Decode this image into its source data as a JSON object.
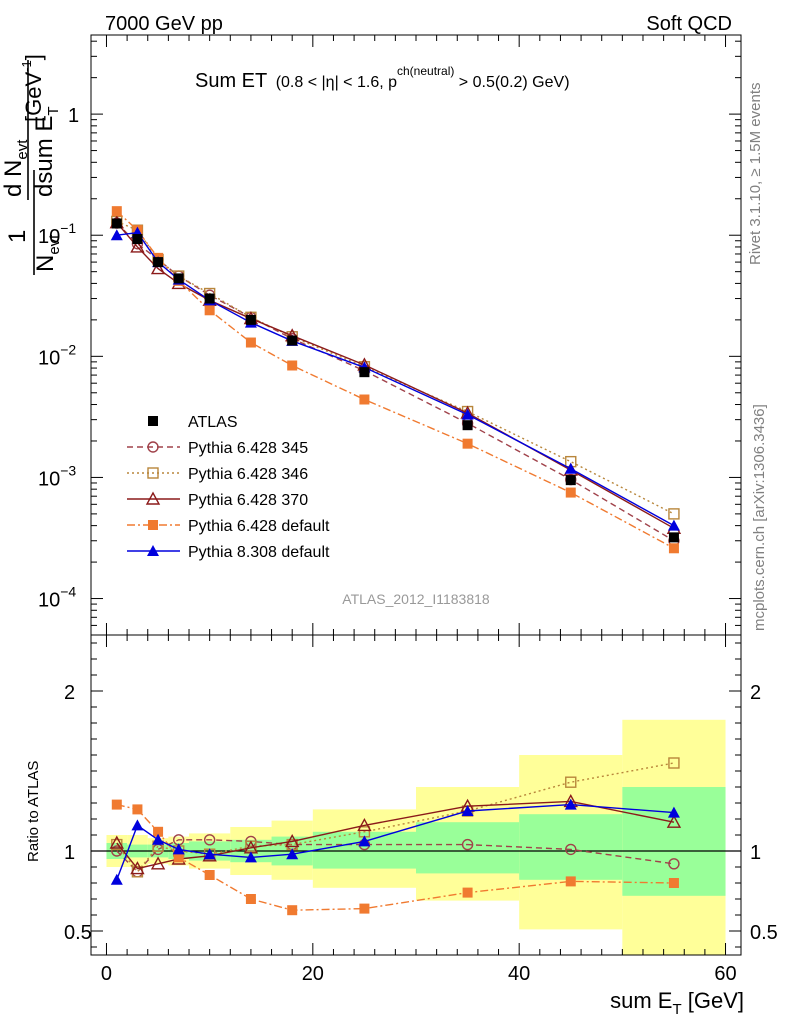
{
  "header": {
    "left": "7000 GeV pp",
    "right": "Soft QCD"
  },
  "title": {
    "main": "Sum ET",
    "cond_a": "(0.8 < |",
    "eta": "η",
    "cond_b": "| < 1.6, p",
    "sup": "ch(neutral)",
    "cond_c": " > 0.5(0.2) GeV)"
  },
  "ylabel": {
    "one": "1",
    "n": "N",
    "evt_sub": "evt",
    "d": "d N",
    "evt_sub2": "evt",
    "dsum": "dsum E",
    "t_sub": "T",
    "unit": "[GeV",
    "unit_sup": "-1",
    "unit_close": "]"
  },
  "side": {
    "rivet": "Rivet 3.1.10, ≥ 1.5M events",
    "mcplots": "mcplots.cern.ch [arXiv:1306.3436]"
  },
  "analysis_id": "ATLAS_2012_I1183818",
  "ratio_ylabel": "Ratio to ATLAS",
  "xlabel": {
    "text": "sum E",
    "sub": "T",
    "unit": " [GeV]"
  },
  "chart_data": {
    "type": "line",
    "x_unit": "GeV",
    "xlim": [
      -1.5,
      61.5
    ],
    "xticks": [
      0,
      20,
      40,
      60
    ],
    "main_ylim": [
      5e-05,
      4.5
    ],
    "main_log": true,
    "main_ytick_labels": [
      {
        "v": 1,
        "base": "1",
        "exp": ""
      },
      {
        "v": 0.1,
        "base": "10",
        "exp": "−1"
      },
      {
        "v": 0.01,
        "base": "10",
        "exp": "−2"
      },
      {
        "v": 0.001,
        "base": "10",
        "exp": "−3"
      },
      {
        "v": 0.0001,
        "base": "10",
        "exp": "−4"
      }
    ],
    "ratio_ylim": [
      0.35,
      2.35
    ],
    "ratio_yticks": [
      0.5,
      1,
      2
    ],
    "ratio_ytick_labels": [
      "0.5",
      "1",
      "2"
    ],
    "x": [
      1,
      3,
      5,
      7,
      10,
      14,
      18,
      25,
      35,
      45,
      55
    ],
    "bins": [
      [
        0,
        2
      ],
      [
        2,
        4
      ],
      [
        4,
        6
      ],
      [
        6,
        8
      ],
      [
        8,
        12
      ],
      [
        12,
        16
      ],
      [
        16,
        20
      ],
      [
        20,
        30
      ],
      [
        30,
        40
      ],
      [
        40,
        50
      ],
      [
        50,
        60
      ]
    ],
    "band_inner": [
      [
        0.95,
        1.05
      ],
      [
        0.96,
        1.04
      ],
      [
        0.96,
        1.04
      ],
      [
        0.95,
        1.05
      ],
      [
        0.94,
        1.06
      ],
      [
        0.93,
        1.07
      ],
      [
        0.91,
        1.09
      ],
      [
        0.89,
        1.12
      ],
      [
        0.86,
        1.18
      ],
      [
        0.82,
        1.23
      ],
      [
        0.72,
        1.4
      ]
    ],
    "band_outer": [
      [
        0.9,
        1.1
      ],
      [
        0.9,
        1.1
      ],
      [
        0.92,
        1.08
      ],
      [
        0.91,
        1.09
      ],
      [
        0.89,
        1.11
      ],
      [
        0.85,
        1.15
      ],
      [
        0.82,
        1.19
      ],
      [
        0.77,
        1.26
      ],
      [
        0.69,
        1.4
      ],
      [
        0.51,
        1.6
      ],
      [
        0.35,
        1.82
      ]
    ],
    "series": [
      {
        "name": "ATLAS",
        "style": "data",
        "color": "#000000",
        "marker": "square-filled",
        "dash": "",
        "values": [
          0.125,
          0.093,
          0.06,
          0.044,
          0.03,
          0.02,
          0.0135,
          0.0074,
          0.0027,
          0.00095,
          0.00032
        ],
        "ratio": [
          1,
          1,
          1,
          1,
          1,
          1,
          1,
          1,
          1,
          1,
          1
        ]
      },
      {
        "name": "Pythia 6.428 345",
        "color": "#a0424a",
        "marker": "circle-open",
        "dash": "6,4",
        "values": [
          0.126,
          0.085,
          0.063,
          0.046,
          0.032,
          0.021,
          0.014,
          0.0076,
          0.0028,
          0.00096,
          0.0003
        ],
        "ratio": [
          1.0,
          0.87,
          1.01,
          1.07,
          1.07,
          1.06,
          1.04,
          1.04,
          1.04,
          1.01,
          0.92
        ]
      },
      {
        "name": "Pythia 6.428 346",
        "color": "#b8863b",
        "marker": "square-open",
        "dash": "2,3",
        "values": [
          0.13,
          0.11,
          0.063,
          0.046,
          0.033,
          0.021,
          0.0145,
          0.0082,
          0.0035,
          0.00135,
          0.0005
        ],
        "ratio": [
          1.04,
          0.87,
          1.03,
          1.0,
          0.98,
          1.03,
          1.04,
          1.12,
          1.25,
          1.43,
          1.55
        ]
      },
      {
        "name": "Pythia 6.428 370",
        "color": "#8b1a1a",
        "marker": "triangle-open",
        "dash": "",
        "values": [
          0.127,
          0.08,
          0.053,
          0.04,
          0.029,
          0.0205,
          0.0148,
          0.0085,
          0.0034,
          0.00115,
          0.00038
        ],
        "ratio": [
          1.05,
          0.89,
          0.92,
          0.95,
          0.97,
          1.02,
          1.06,
          1.16,
          1.28,
          1.31,
          1.18
        ]
      },
      {
        "name": "Pythia 6.428 default",
        "color": "#f07a30",
        "marker": "square-filled",
        "dash": "8,3,2,3",
        "values": [
          0.158,
          0.11,
          0.065,
          0.042,
          0.024,
          0.013,
          0.0084,
          0.0044,
          0.0019,
          0.00075,
          0.00026
        ],
        "ratio": [
          1.29,
          1.26,
          1.12,
          0.96,
          0.85,
          0.7,
          0.63,
          0.64,
          0.74,
          0.81,
          0.8
        ]
      },
      {
        "name": "Pythia 8.308 default",
        "color": "#0000dd",
        "marker": "triangle-filled",
        "dash": "",
        "values": [
          0.1,
          0.105,
          0.06,
          0.043,
          0.029,
          0.019,
          0.0134,
          0.0081,
          0.0033,
          0.00118,
          0.0004
        ],
        "ratio": [
          0.82,
          1.16,
          1.07,
          1.01,
          0.98,
          0.96,
          0.98,
          1.06,
          1.25,
          1.29,
          1.24
        ]
      }
    ],
    "legend_position": "lower-left"
  },
  "colors": {
    "band_inner": "#99ff99",
    "band_outer": "#ffff99"
  }
}
